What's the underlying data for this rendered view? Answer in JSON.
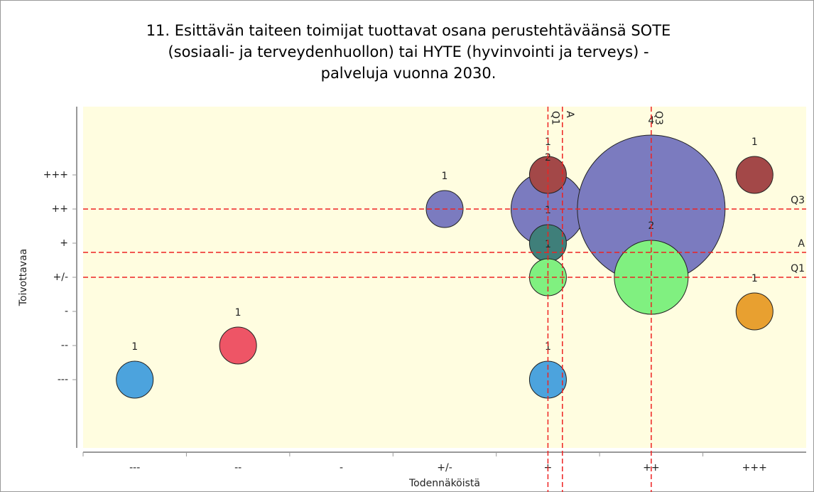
{
  "chart_data": {
    "type": "bubble",
    "title": [
      "11. Esittävän taiteen toimijat tuottavat osana perustehtäväänsä SOTE",
      "(sosiaali- ja terveydenhuollon) tai HYTE (hyvinvointi ja terveys) -",
      "palveluja vuonna 2030."
    ],
    "x_label": "Todennäköistä",
    "y_label": "Toivottavaa",
    "xlim": [
      0.5,
      7.5
    ],
    "ylim": [
      -1,
      9
    ],
    "xticks": [
      {
        "value": 1,
        "label": "---"
      },
      {
        "value": 2,
        "label": "--"
      },
      {
        "value": 3,
        "label": "-"
      },
      {
        "value": 4,
        "label": "+/-"
      },
      {
        "value": 5,
        "label": "+"
      },
      {
        "value": 6,
        "label": "++"
      },
      {
        "value": 7,
        "label": "+++"
      }
    ],
    "yticks": [
      {
        "value": 1,
        "label": "---"
      },
      {
        "value": 2,
        "label": "--"
      },
      {
        "value": 3,
        "label": "-"
      },
      {
        "value": 4,
        "label": "+/-"
      },
      {
        "value": 5,
        "label": "+"
      },
      {
        "value": 6,
        "label": "++"
      },
      {
        "value": 7,
        "label": "+++"
      }
    ],
    "points": [
      {
        "x": 1,
        "y": 1,
        "size": 1,
        "color": "#4ca3dd"
      },
      {
        "x": 2,
        "y": 2,
        "size": 1,
        "color": "#ee5566"
      },
      {
        "x": 4,
        "y": 6,
        "size": 1,
        "color": "#7b7bbf"
      },
      {
        "x": 5,
        "y": 6,
        "size": 2,
        "color": "#7b7bbf"
      },
      {
        "x": 5,
        "y": 7,
        "size": 1,
        "color": "#a34848"
      },
      {
        "x": 5,
        "y": 5,
        "size": 1,
        "color": "#3f7f7a"
      },
      {
        "x": 5,
        "y": 4,
        "size": 1,
        "color": "#80f080"
      },
      {
        "x": 5,
        "y": 1,
        "size": 1,
        "color": "#4ca3dd"
      },
      {
        "x": 6,
        "y": 6,
        "size": 4,
        "color": "#7b7bbf"
      },
      {
        "x": 6,
        "y": 4,
        "size": 2,
        "color": "#80f080"
      },
      {
        "x": 7,
        "y": 7,
        "size": 1,
        "color": "#a34848"
      },
      {
        "x": 7,
        "y": 3,
        "size": 1,
        "color": "#e8a030"
      }
    ],
    "reference_lines": {
      "x": [
        {
          "value": 5,
          "label": "Q1"
        },
        {
          "value": 5.14,
          "label": "A"
        },
        {
          "value": 6,
          "label": "Q3"
        }
      ],
      "y": [
        {
          "value": 6,
          "label": "Q3"
        },
        {
          "value": 4.73,
          "label": "A"
        },
        {
          "value": 4,
          "label": "Q1"
        }
      ],
      "color": "#ee2222"
    },
    "plot_background": "#fffde0"
  }
}
